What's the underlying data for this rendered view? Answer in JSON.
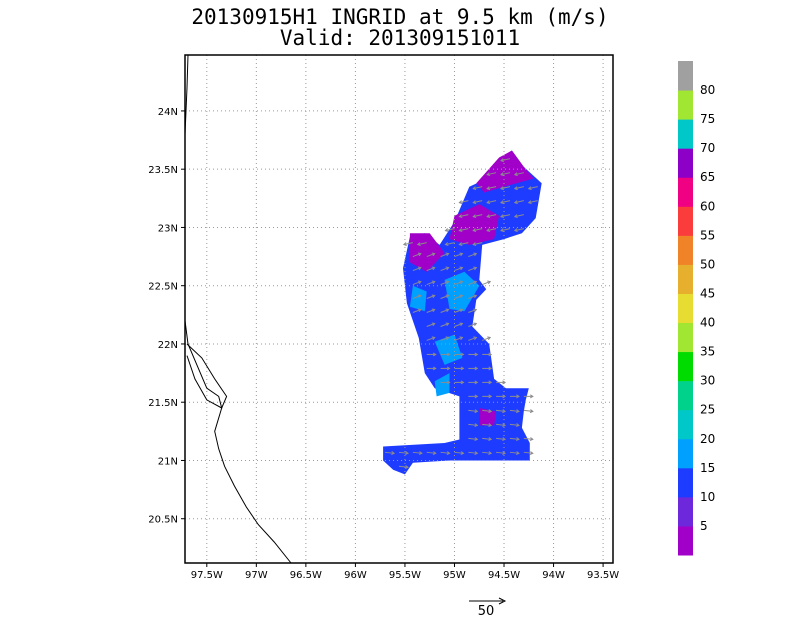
{
  "title_line1": "20130915H1 INGRID at 9.5 km (m/s)",
  "title_line2": "Valid: 201309151011",
  "lon_ticks": [
    {
      "value": -97.5,
      "label": "97.5W"
    },
    {
      "value": -97.0,
      "label": "97W"
    },
    {
      "value": -96.5,
      "label": "96.5W"
    },
    {
      "value": -96.0,
      "label": "96W"
    },
    {
      "value": -95.5,
      "label": "95.5W"
    },
    {
      "value": -95.0,
      "label": "95W"
    },
    {
      "value": -94.5,
      "label": "94.5W"
    },
    {
      "value": -94.0,
      "label": "94W"
    },
    {
      "value": -93.5,
      "label": "93.5W"
    }
  ],
  "lat_ticks": [
    {
      "value": 24.0,
      "label": "24N"
    },
    {
      "value": 23.5,
      "label": "23.5N"
    },
    {
      "value": 23.0,
      "label": "23N"
    },
    {
      "value": 22.5,
      "label": "22.5N"
    },
    {
      "value": 22.0,
      "label": "22N"
    },
    {
      "value": 21.5,
      "label": "21.5N"
    },
    {
      "value": 21.0,
      "label": "21N"
    },
    {
      "value": 20.5,
      "label": "20.5N"
    }
  ],
  "map_extent": {
    "lon_min": -97.72,
    "lon_max": -93.4,
    "lat_min": 20.12,
    "lat_max": 24.48
  },
  "grid": true,
  "vector_scale": {
    "label": "50",
    "units": "m/s"
  },
  "colorbar": {
    "labels": [
      "5",
      "10",
      "15",
      "20",
      "25",
      "30",
      "35",
      "40",
      "45",
      "50",
      "55",
      "60",
      "65",
      "70",
      "75",
      "80"
    ],
    "colors": [
      "#a000c8",
      "#6e28dc",
      "#1e3cff",
      "#00a0ff",
      "#00c8c8",
      "#00d28c",
      "#00dc00",
      "#a0e632",
      "#e6dc32",
      "#e6af2d",
      "#f08228",
      "#fa3c3c",
      "#f00082",
      "#8c00c8",
      "#00c8c8",
      "#a0e632",
      "#a0a0a0"
    ]
  },
  "wind_field": {
    "region_outline": [
      [
        -94.6,
        23.55
      ],
      [
        -94.42,
        23.66
      ],
      [
        -94.3,
        23.52
      ],
      [
        -94.12,
        23.38
      ],
      [
        -94.18,
        23.08
      ],
      [
        -94.32,
        22.95
      ],
      [
        -94.5,
        22.9
      ],
      [
        -94.72,
        22.85
      ],
      [
        -94.75,
        22.55
      ],
      [
        -94.68,
        22.47
      ],
      [
        -94.78,
        22.38
      ],
      [
        -94.82,
        22.15
      ],
      [
        -94.65,
        22.0
      ],
      [
        -94.6,
        21.7
      ],
      [
        -94.48,
        21.62
      ],
      [
        -94.25,
        21.62
      ],
      [
        -94.28,
        21.52
      ],
      [
        -94.3,
        21.42
      ],
      [
        -94.32,
        21.28
      ],
      [
        -94.24,
        21.15
      ],
      [
        -94.24,
        21.0
      ],
      [
        -94.5,
        21.0
      ],
      [
        -95.05,
        21.0
      ],
      [
        -95.42,
        20.98
      ],
      [
        -95.5,
        20.88
      ],
      [
        -95.62,
        20.92
      ],
      [
        -95.72,
        21.0
      ],
      [
        -95.72,
        21.12
      ],
      [
        -95.1,
        21.15
      ],
      [
        -94.95,
        21.18
      ],
      [
        -94.95,
        21.35
      ],
      [
        -94.95,
        21.55
      ],
      [
        -95.2,
        21.62
      ],
      [
        -95.3,
        21.75
      ],
      [
        -95.36,
        22.05
      ],
      [
        -95.48,
        22.35
      ],
      [
        -95.52,
        22.65
      ],
      [
        -95.45,
        22.92
      ],
      [
        -95.3,
        22.95
      ],
      [
        -95.15,
        22.85
      ],
      [
        -95.0,
        23.05
      ],
      [
        -94.85,
        23.35
      ],
      [
        -94.72,
        23.4
      ]
    ],
    "patches": [
      {
        "speed_class": "5",
        "points": [
          [
            -94.55,
            23.6
          ],
          [
            -94.42,
            23.66
          ],
          [
            -94.3,
            23.52
          ],
          [
            -94.2,
            23.42
          ],
          [
            -94.5,
            23.35
          ],
          [
            -94.7,
            23.3
          ],
          [
            -94.78,
            23.38
          ]
        ]
      },
      {
        "speed_class": "5",
        "points": [
          [
            -95.0,
            23.1
          ],
          [
            -94.75,
            23.2
          ],
          [
            -94.55,
            23.1
          ],
          [
            -94.6,
            22.9
          ],
          [
            -94.85,
            22.85
          ],
          [
            -95.05,
            22.9
          ]
        ]
      },
      {
        "speed_class": "5",
        "points": [
          [
            -95.45,
            22.95
          ],
          [
            -95.25,
            22.95
          ],
          [
            -95.1,
            22.78
          ],
          [
            -95.28,
            22.62
          ],
          [
            -95.45,
            22.7
          ]
        ]
      },
      {
        "speed_class": "5",
        "points": [
          [
            -94.75,
            21.45
          ],
          [
            -94.58,
            21.42
          ],
          [
            -94.6,
            21.3
          ],
          [
            -94.75,
            21.3
          ]
        ]
      },
      {
        "speed_class": "15",
        "points": [
          [
            -95.1,
            22.55
          ],
          [
            -94.9,
            22.62
          ],
          [
            -94.75,
            22.5
          ],
          [
            -94.9,
            22.28
          ],
          [
            -95.05,
            22.3
          ]
        ]
      },
      {
        "speed_class": "15",
        "points": [
          [
            -95.42,
            22.5
          ],
          [
            -95.28,
            22.45
          ],
          [
            -95.3,
            22.28
          ],
          [
            -95.45,
            22.32
          ]
        ]
      },
      {
        "speed_class": "15",
        "points": [
          [
            -95.2,
            22.02
          ],
          [
            -95.0,
            22.08
          ],
          [
            -94.92,
            21.88
          ],
          [
            -95.1,
            21.82
          ]
        ]
      },
      {
        "speed_class": "15",
        "points": [
          [
            -95.2,
            21.68
          ],
          [
            -95.05,
            21.75
          ],
          [
            -95.05,
            21.58
          ],
          [
            -95.18,
            21.55
          ]
        ]
      }
    ],
    "coastline": [
      [
        -97.69,
        24.48
      ],
      [
        -97.7,
        24.2
      ],
      [
        -97.72,
        23.8
      ],
      [
        -97.72,
        23.4
      ],
      [
        -97.72,
        23.0
      ],
      [
        -97.72,
        22.6
      ],
      [
        -97.72,
        22.2
      ],
      [
        -97.69,
        22.0
      ],
      [
        -97.6,
        21.82
      ],
      [
        -97.5,
        21.62
      ],
      [
        -97.38,
        21.55
      ],
      [
        -97.35,
        21.45
      ],
      [
        -97.42,
        21.25
      ],
      [
        -97.38,
        21.1
      ],
      [
        -97.32,
        20.95
      ],
      [
        -97.22,
        20.78
      ],
      [
        -97.1,
        20.6
      ],
      [
        -96.98,
        20.45
      ],
      [
        -96.82,
        20.3
      ],
      [
        -96.65,
        20.12
      ]
    ],
    "coast_lagoon": [
      [
        -97.7,
        22.0
      ],
      [
        -97.55,
        21.88
      ],
      [
        -97.42,
        21.7
      ],
      [
        -97.3,
        21.55
      ],
      [
        -97.35,
        21.45
      ],
      [
        -97.5,
        21.52
      ],
      [
        -97.62,
        21.7
      ],
      [
        -97.7,
        21.9
      ]
    ]
  }
}
